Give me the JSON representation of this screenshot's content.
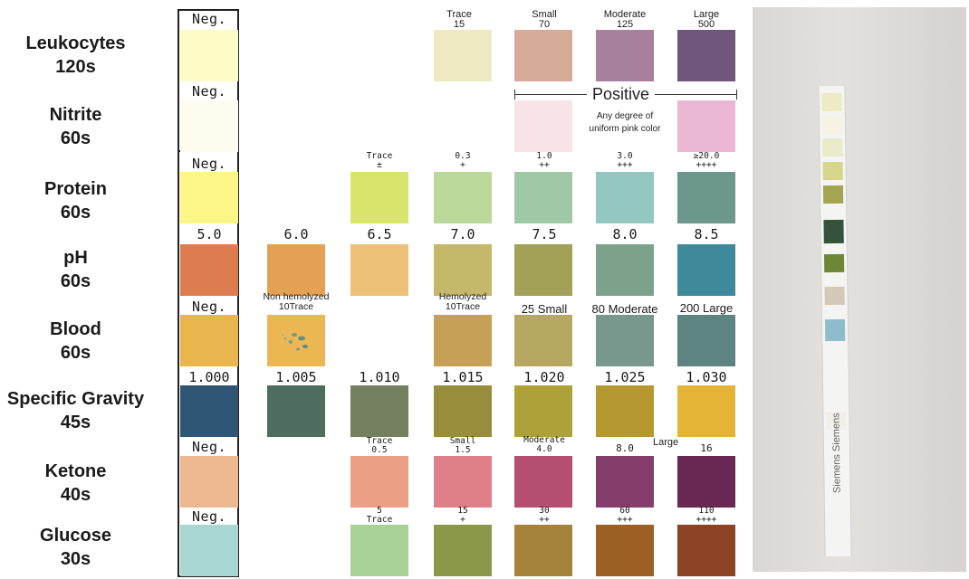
{
  "rows": [
    {
      "name": "Leukocytes",
      "time": "120s"
    },
    {
      "name": "Nitrite",
      "time": "60s"
    },
    {
      "name": "Protein",
      "time": "60s"
    },
    {
      "name": "pH",
      "time": "60s"
    },
    {
      "name": "Blood",
      "time": "60s"
    },
    {
      "name": "Specific Gravity",
      "time": "45s"
    },
    {
      "name": "Ketone",
      "time": "40s"
    },
    {
      "name": "Glucose",
      "time": "30s"
    }
  ],
  "neg_label": "Neg.",
  "leukocytes": {
    "levels": [
      {
        "word": "Trace",
        "num": "15"
      },
      {
        "word": "Small",
        "num": "70"
      },
      {
        "word": "Moderate",
        "num": "125"
      },
      {
        "word": "Large",
        "num": "500"
      }
    ],
    "colors": [
      "#fdfbc6",
      "#efe9c1",
      "#d8ab99",
      "#a7809e",
      "#6e567d"
    ]
  },
  "nitrite": {
    "positive_label": "Positive",
    "note_line1": "Any degree of",
    "note_line2": "uniform pink color",
    "colors": [
      "#fefcee",
      "#f8e4e8",
      "#eab8d2"
    ]
  },
  "protein": {
    "levels": [
      {
        "top": "Trace",
        "bottom": "±"
      },
      {
        "top": "0.3",
        "bottom": "+"
      },
      {
        "top": "1.0",
        "bottom": "++"
      },
      {
        "top": "3.0",
        "bottom": "+++"
      },
      {
        "top": "≥20.0",
        "bottom": "++++"
      }
    ],
    "colors": [
      "#fbf687",
      "#d8e46c",
      "#bbd89b",
      "#9fc8a6",
      "#93c7c0",
      "#6d968d"
    ]
  },
  "ph": {
    "values": [
      "5.0",
      "6.0",
      "6.5",
      "7.0",
      "7.5",
      "8.0",
      "8.5"
    ],
    "colors": [
      "#dc7c4f",
      "#e4a154",
      "#edc278",
      "#c6b86a",
      "#a3a058",
      "#7da28c",
      "#3e8a9b"
    ]
  },
  "blood": {
    "nonhem_line1": "Non hemolyzed",
    "nonhem_line2": "10Trace",
    "hem_line1": "Hemolyzed",
    "hem_line2": "10Trace",
    "small": "25 Small",
    "moderate": "80 Moderate",
    "large": "200 Large",
    "colors": [
      "#ebb54e",
      "#ecb753",
      "#c7a058",
      "#b6a761",
      "#78978d",
      "#5d8480"
    ]
  },
  "specific_gravity": {
    "values": [
      "1.000",
      "1.005",
      "1.010",
      "1.015",
      "1.020",
      "1.025",
      "1.030"
    ],
    "colors": [
      "#2f5674",
      "#4e6d5e",
      "#737f5f",
      "#978d3c",
      "#afa13a",
      "#b59830",
      "#e4b436"
    ]
  },
  "ketone": {
    "levels": [
      {
        "top": "Trace",
        "bottom": "0.5"
      },
      {
        "top": "Small",
        "bottom": "1.5"
      },
      {
        "top": "Moderate",
        "bottom": "4.0"
      },
      {
        "top": "",
        "bottom": "8.0"
      },
      {
        "top": "",
        "bottom": "16"
      }
    ],
    "large_label": "Large",
    "colors": [
      "#eeb891",
      "#eb9f84",
      "#df7f88",
      "#b44f72",
      "#853e6c",
      "#692854"
    ]
  },
  "glucose": {
    "levels": [
      {
        "top": "5",
        "bottom": "Trace"
      },
      {
        "top": "15",
        "bottom": "+"
      },
      {
        "top": "30",
        "bottom": "++"
      },
      {
        "top": "60",
        "bottom": "+++"
      },
      {
        "top": "110",
        "bottom": "++++"
      }
    ],
    "colors": [
      "#a7d6d3",
      "#a7d197",
      "#8b9749",
      "#a7823d",
      "#9c5f24",
      "#8a4323"
    ]
  },
  "strip_photo": {
    "brand_text_1": "Siemens",
    "brand_text_2": "Siemens",
    "pad_colors": [
      "#ecebc4",
      "#f4f3e4",
      "#e9eac7",
      "#d5d68b",
      "#a4a550",
      "#34523e",
      "#6d8737",
      "#d6c8b8",
      "#8fbccb",
      "#f2f2f2"
    ]
  }
}
